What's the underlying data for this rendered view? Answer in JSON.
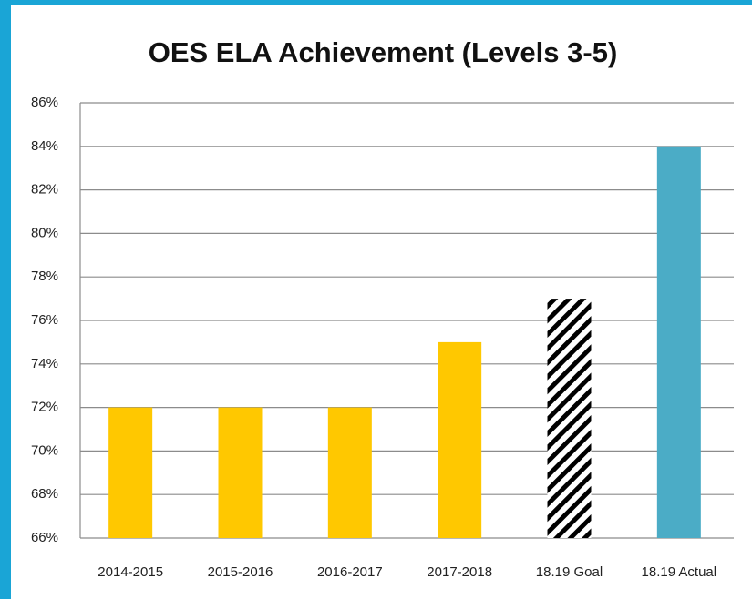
{
  "chart_data": {
    "type": "bar",
    "title": "OES ELA Achievement (Levels 3-5)",
    "categories": [
      "2014-2015",
      "2015-2016",
      "2016-2017",
      "2017-2018",
      "18.19 Goal",
      "18.19 Actual"
    ],
    "values": [
      72,
      72,
      72,
      75,
      77,
      84
    ],
    "colors": [
      "#ffc800",
      "#ffc800",
      "#ffc800",
      "#ffc800",
      "#000000",
      "#4bacc6"
    ],
    "hatched": [
      false,
      false,
      false,
      false,
      true,
      false
    ],
    "ylim": [
      66,
      86
    ],
    "yticks": [
      {
        "value": 66,
        "label": "66%"
      },
      {
        "value": 68,
        "label": "68%"
      },
      {
        "value": 70,
        "label": "70%"
      },
      {
        "value": 72,
        "label": "72%"
      },
      {
        "value": 74,
        "label": "74%"
      },
      {
        "value": 76,
        "label": "76%"
      },
      {
        "value": 78,
        "label": "78%"
      },
      {
        "value": 80,
        "label": "80%"
      },
      {
        "value": 82,
        "label": "82%"
      },
      {
        "value": 84,
        "label": "84%"
      },
      {
        "value": 86,
        "label": "86%"
      }
    ],
    "grid": true
  }
}
